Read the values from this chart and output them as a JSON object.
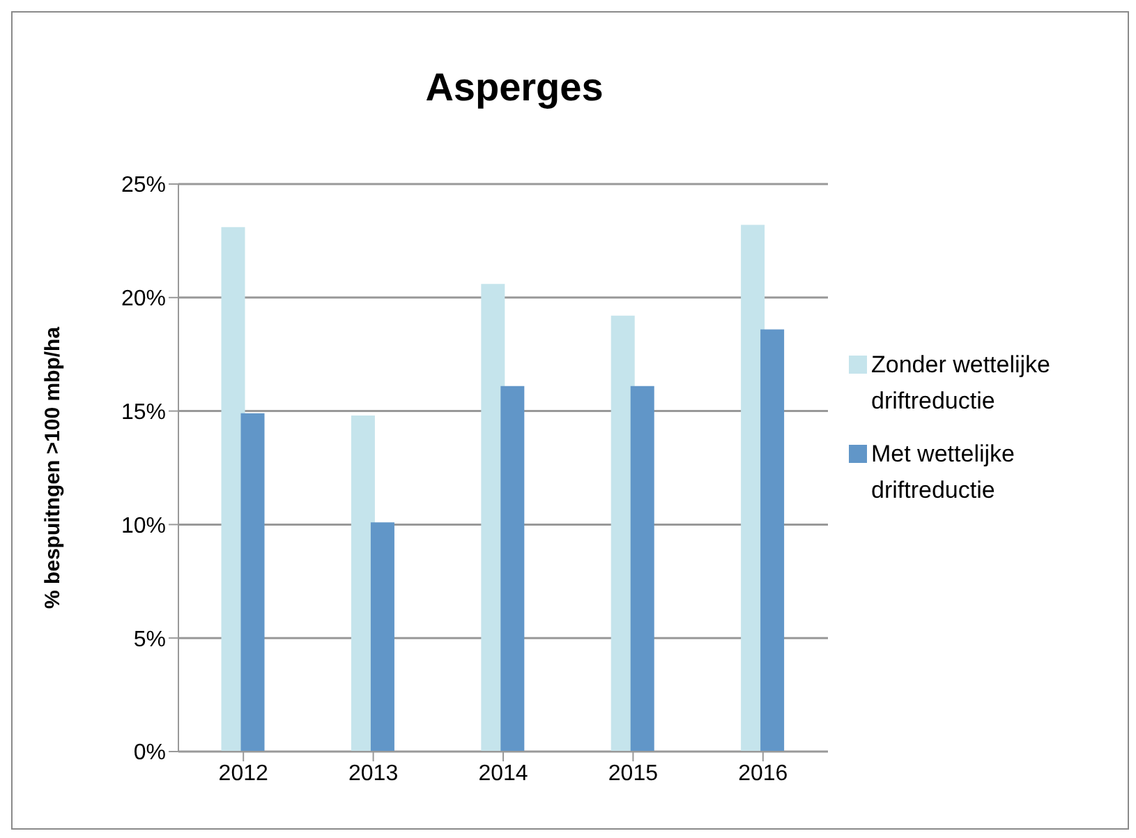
{
  "chart_data": {
    "type": "bar",
    "title": "Asperges",
    "ylabel": "% bespuitngen >100 mbp/ha",
    "categories": [
      "2012",
      "2013",
      "2014",
      "2015",
      "2016"
    ],
    "series": [
      {
        "name": "Zonder wettelijke driftreductie",
        "color": "#c5e4ec",
        "values": [
          23.1,
          14.8,
          20.6,
          19.2,
          23.2
        ]
      },
      {
        "name": "Met wettelijke driftreductie",
        "color": "#6196c8",
        "values": [
          14.9,
          10.1,
          16.1,
          16.1,
          18.6
        ]
      }
    ],
    "ylim": [
      0,
      25
    ],
    "yticks": [
      {
        "value": 0,
        "label": "0%"
      },
      {
        "value": 5,
        "label": "5%"
      },
      {
        "value": 10,
        "label": "10%"
      },
      {
        "value": 15,
        "label": "15%"
      },
      {
        "value": 20,
        "label": "20%"
      },
      {
        "value": 25,
        "label": "25%"
      }
    ],
    "grid": "y",
    "legend": "right"
  }
}
